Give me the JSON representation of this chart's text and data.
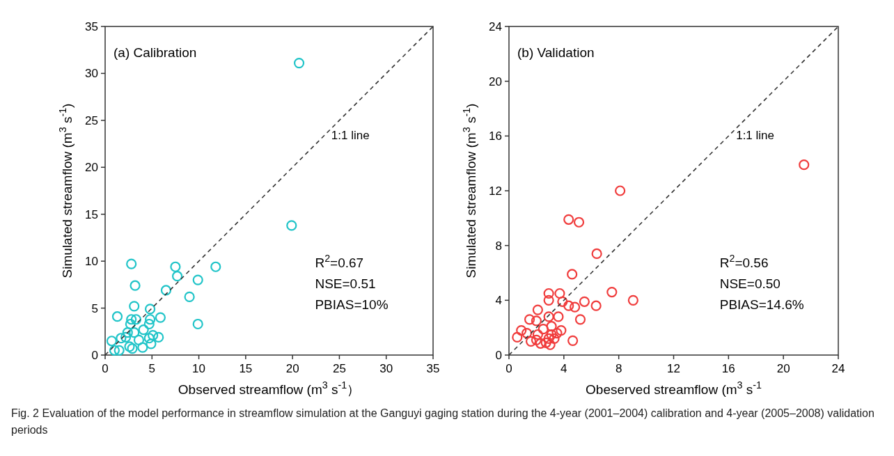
{
  "chart_data": [
    {
      "type": "scatter",
      "xlabel": "Observed streamflow (m$^{3}$ s$^{-1}$）",
      "ylabel": "Simulated streamflow (m$^{3}$ s$^{-1}$)",
      "xlim": [
        0,
        35
      ],
      "ylim": [
        0,
        35
      ],
      "xticks": [
        0,
        5,
        10,
        15,
        20,
        25,
        30,
        35
      ],
      "yticks": [
        0,
        5,
        10,
        15,
        20,
        25,
        30,
        35
      ],
      "marker": "circle",
      "annotations": [
        "(a) Calibration",
        "R$^{2}$=0.67",
        "NSE=0.51",
        "PBIAS=10%"
      ],
      "series": [
        {
          "color": "#20c4c8",
          "x": [
            20.7,
            19.9,
            2.8,
            11.8,
            7.5,
            7.7,
            9.9,
            3.2,
            6.5,
            9.0,
            9.9,
            3.1,
            4.8,
            1.3,
            5.9,
            2.8,
            3.3,
            4.8,
            2.7,
            4.7,
            4.1,
            2.4,
            3.1,
            3.6,
            5.1,
            5.7,
            4.7,
            4.9,
            0.7,
            1.7,
            1.0,
            1.5,
            2.6,
            2.9,
            4.0,
            2.2
          ],
          "values": [
            31.1,
            13.8,
            9.7,
            9.4,
            9.4,
            8.4,
            8.0,
            7.4,
            6.9,
            6.2,
            3.3,
            5.2,
            4.9,
            4.1,
            4.0,
            3.8,
            3.8,
            3.8,
            3.3,
            3.3,
            2.7,
            2.4,
            2.4,
            1.6,
            2.1,
            1.9,
            1.8,
            1.2,
            1.5,
            1.8,
            0.5,
            0.5,
            0.9,
            0.7,
            0.8,
            1.9
          ]
        },
        {
          "type": "line",
          "name": "1:1 line",
          "color": "#333333",
          "line_style": "dashed",
          "marker": "none",
          "x": [
            0,
            35
          ],
          "values": [
            0,
            35
          ]
        }
      ]
    },
    {
      "type": "scatter",
      "xlabel": "Obeserved streamflow (m$^{3}$ s$^{-1}$",
      "ylabel": "Simulated streamflow (m$^{3}$ s$^{-1}$)",
      "xlim": [
        0,
        24
      ],
      "ylim": [
        0,
        24
      ],
      "xticks": [
        0,
        4,
        8,
        12,
        16,
        20,
        24
      ],
      "yticks": [
        0,
        4,
        8,
        12,
        16,
        20,
        24
      ],
      "marker": "circle",
      "annotations": [
        "(b) Validation",
        "R$^{2}$=0.56",
        "NSE=0.50",
        "PBIAS=14.6%",
        "Fig. 2  Evaluation of the model performance in streamflow simulation at the Ganguyi gaging station during the 4-year (2001–2004) calibration and 4-year (2005–2008) validation periods"
      ],
      "series": [
        {
          "color": "#f03c3c",
          "x": [
            21.5,
            8.1,
            4.35,
            5.1,
            6.4,
            4.6,
            7.5,
            9.05,
            2.9,
            3.7,
            2.9,
            3.9,
            5.5,
            4.35,
            4.8,
            6.35,
            2.1,
            2.9,
            3.6,
            1.5,
            2.0,
            5.2,
            3.1,
            2.5,
            0.9,
            3.8,
            1.3,
            0.6,
            2.1,
            3.1,
            3.5,
            3.3,
            2.9,
            1.6,
            2.0,
            2.3,
            2.7,
            3.0,
            4.65
          ],
          "values": [
            13.9,
            12.0,
            9.9,
            9.7,
            7.4,
            5.9,
            4.6,
            4.0,
            4.5,
            4.5,
            4.0,
            3.9,
            3.9,
            3.6,
            3.5,
            3.6,
            3.3,
            2.8,
            2.8,
            2.6,
            2.5,
            2.6,
            2.1,
            1.9,
            1.8,
            1.8,
            1.6,
            1.3,
            1.5,
            1.5,
            1.6,
            1.2,
            1.2,
            1.0,
            1.1,
            0.85,
            0.9,
            0.75,
            1.05
          ]
        },
        {
          "type": "line",
          "name": "1:1 line",
          "color": "#333333",
          "line_style": "dashed",
          "marker": "none",
          "x": [
            0,
            24
          ],
          "values": [
            0,
            24
          ]
        }
      ]
    }
  ]
}
